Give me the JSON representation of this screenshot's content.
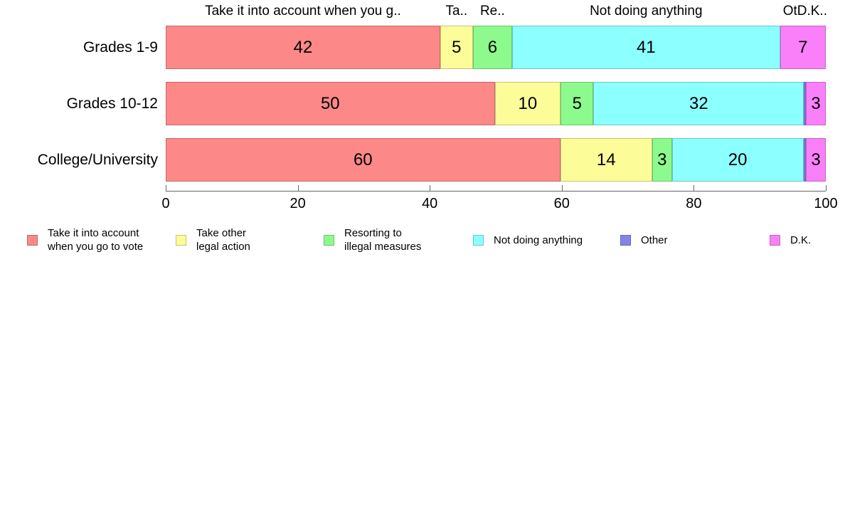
{
  "chart_data": {
    "type": "bar",
    "orientation": "horizontal",
    "stacked": true,
    "grid": false,
    "legend_position": "bottom",
    "categories": [
      "Grades 1-9",
      "Grades 10-12",
      "College/University"
    ],
    "series": [
      {
        "name": "Take it into account when you go to vote",
        "color": "#FC8888",
        "values": [
          42,
          50,
          60
        ]
      },
      {
        "name": "Take other legal action",
        "color": "#FCFC99",
        "values": [
          5,
          10,
          14
        ]
      },
      {
        "name": "Resorting to illegal measures",
        "color": "#8CFA8C",
        "values": [
          6,
          5,
          3
        ]
      },
      {
        "name": "Not doing anything",
        "color": "#8CFFFF",
        "values": [
          41,
          32,
          20
        ]
      },
      {
        "name": "Other",
        "color": "#8484E8",
        "values": [
          0,
          0.3,
          0.4
        ]
      },
      {
        "name": "D.K.",
        "color": "#FA80FA",
        "values": [
          7,
          3,
          3
        ]
      }
    ],
    "xlim": [
      0,
      100
    ],
    "x_ticks": [
      "0",
      "20",
      "40",
      "60",
      "80",
      "100"
    ],
    "column_headers": [
      "Take it into account when you g..",
      "Ta..",
      "Re..",
      "Not doing anything",
      "OtD.K.."
    ]
  },
  "legend": {
    "items": [
      {
        "label": "Take it into account\nwhen you go to vote",
        "color": "#FC8888"
      },
      {
        "label": "Take other\nlegal action",
        "color": "#FCFC99"
      },
      {
        "label": "Resorting to\nillegal measures",
        "color": "#8CFA8C"
      },
      {
        "label": "Not doing anything",
        "color": "#8CFFFF"
      },
      {
        "label": "Other",
        "color": "#8484E8"
      },
      {
        "label": "D.K.",
        "color": "#FA80FA"
      }
    ]
  }
}
